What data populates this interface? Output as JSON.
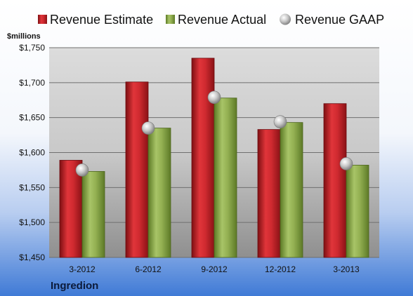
{
  "chart_data": {
    "type": "bar",
    "unit_label": "$millions",
    "brand": "Ingredion",
    "categories": [
      "3-2012",
      "6-2012",
      "9-2012",
      "12-2012",
      "3-2013"
    ],
    "series": [
      {
        "name": "Revenue Estimate",
        "kind": "bar",
        "color": "#c8262c",
        "values": [
          1589,
          1701,
          1735,
          1633,
          1670
        ]
      },
      {
        "name": "Revenue Actual",
        "kind": "bar",
        "color": "#8aa84a",
        "values": [
          1573,
          1635,
          1678,
          1643,
          1582
        ]
      },
      {
        "name": "Revenue GAAP",
        "kind": "marker",
        "color": "#b9b9b9",
        "values": [
          1575,
          1635,
          1679,
          1644,
          1584
        ]
      }
    ],
    "y_axis": {
      "min": 1450,
      "max": 1750,
      "step": 50,
      "tick_labels": [
        "$1,450",
        "$1,500",
        "$1,550",
        "$1,600",
        "$1,650",
        "$1,700",
        "$1,750"
      ]
    },
    "grid": true,
    "legend_position": "top"
  }
}
